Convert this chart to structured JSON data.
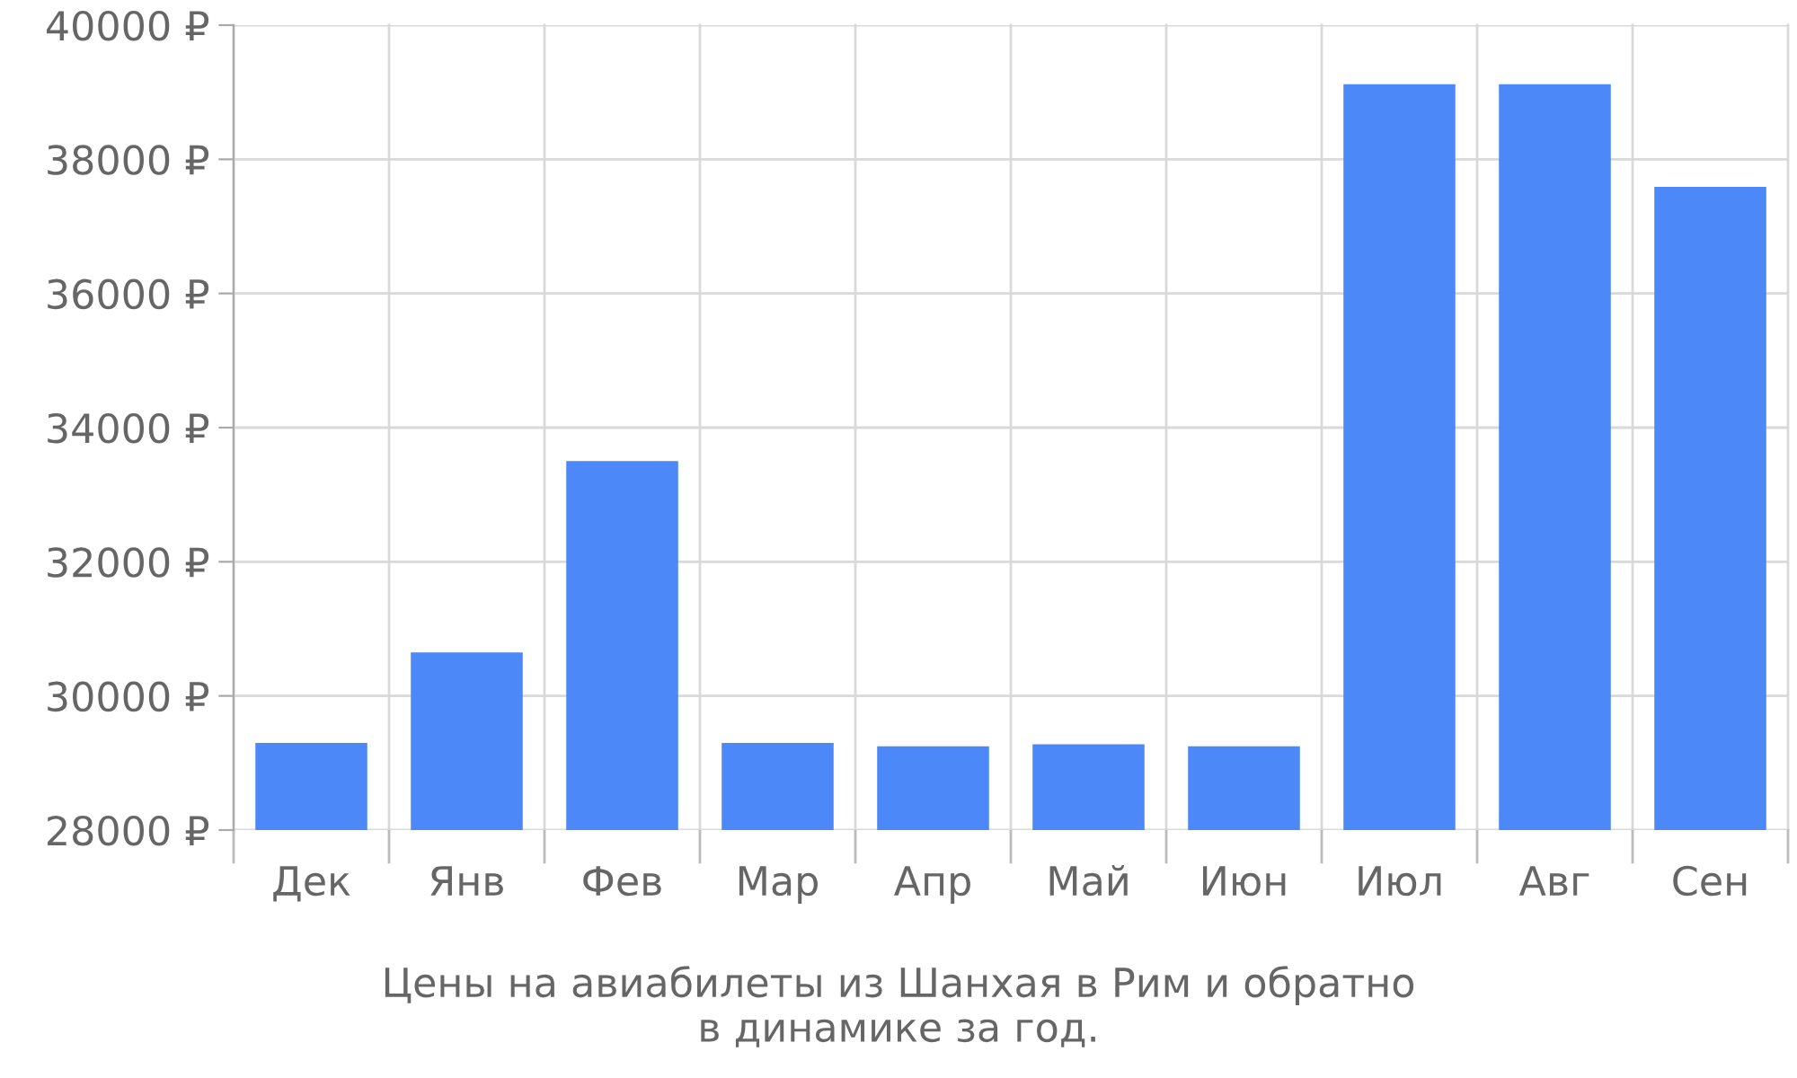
{
  "chart_data": {
    "type": "bar",
    "categories": [
      "Дек",
      "Янв",
      "Фев",
      "Мар",
      "Апр",
      "Май",
      "Июн",
      "Июл",
      "Авг",
      "Сен"
    ],
    "values": [
      29300,
      30650,
      33500,
      29300,
      29250,
      29280,
      29250,
      39120,
      39120,
      37590
    ],
    "color": "#4d88f8",
    "ylim": [
      28000,
      40000
    ],
    "yticks": [
      {
        "value": 28000,
        "label": "28000 ₽"
      },
      {
        "value": 30000,
        "label": "30000 ₽"
      },
      {
        "value": 32000,
        "label": "32000 ₽"
      },
      {
        "value": 34000,
        "label": "34000 ₽"
      },
      {
        "value": 36000,
        "label": "36000 ₽"
      },
      {
        "value": 38000,
        "label": "38000 ₽"
      },
      {
        "value": 40000,
        "label": "40000 ₽"
      }
    ],
    "grid": true,
    "legend": false,
    "annotations": [
      "Цены на авиабилеты из Шанхая в Рим и обратно\nв динамике за год."
    ]
  }
}
